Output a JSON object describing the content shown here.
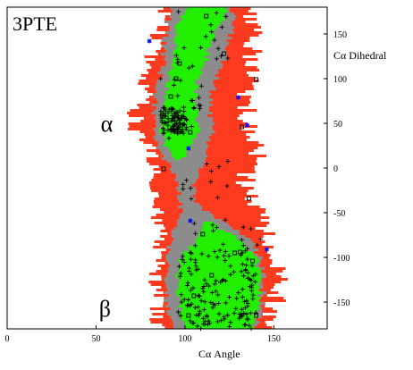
{
  "chart_data": {
    "type": "scatter",
    "title": "3PTE",
    "xlabel": "Cα Angle",
    "ylabel": "Cα Dihedral",
    "xlim": [
      0,
      180
    ],
    "ylim": [
      -180,
      180
    ],
    "x_ticks": [
      0,
      50,
      100,
      150
    ],
    "y_ticks": [
      -150,
      -100,
      -50,
      0,
      50,
      100,
      150
    ],
    "region_labels": [
      {
        "text": "α",
        "x": 56,
        "y": 50
      },
      {
        "text": "β",
        "x": 55,
        "y": -157
      }
    ],
    "colors": {
      "outer_region": "#ff3b1f",
      "middle_region": "#8c8c8c",
      "core_region": "#22ee00",
      "plus_marker": "#000000",
      "square_marker": "#000000",
      "star_marker": "#0000ff"
    },
    "star_points": [
      {
        "x": 80,
        "y": 142
      },
      {
        "x": 130,
        "y": 79
      },
      {
        "x": 135,
        "y": 48
      },
      {
        "x": 103,
        "y": -59
      },
      {
        "x": 146,
        "y": -91
      },
      {
        "x": 102,
        "y": 22
      }
    ],
    "square_points": [
      {
        "x": 122,
        "y": 128
      },
      {
        "x": 140,
        "y": 99
      },
      {
        "x": 92,
        "y": 80
      },
      {
        "x": 103,
        "y": 40
      },
      {
        "x": 136,
        "y": -34
      },
      {
        "x": 131,
        "y": -94
      },
      {
        "x": 138,
        "y": -104
      },
      {
        "x": 110,
        "y": -74
      },
      {
        "x": 97,
        "y": 117
      },
      {
        "x": 132,
        "y": 46
      },
      {
        "x": 88,
        "y": -1
      },
      {
        "x": 105,
        "y": -143
      },
      {
        "x": 140,
        "y": -165
      },
      {
        "x": 115,
        "y": -120
      },
      {
        "x": 102,
        "y": -165
      },
      {
        "x": 128,
        "y": -95
      },
      {
        "x": 95,
        "y": 100
      },
      {
        "x": 112,
        "y": 170
      }
    ]
  }
}
